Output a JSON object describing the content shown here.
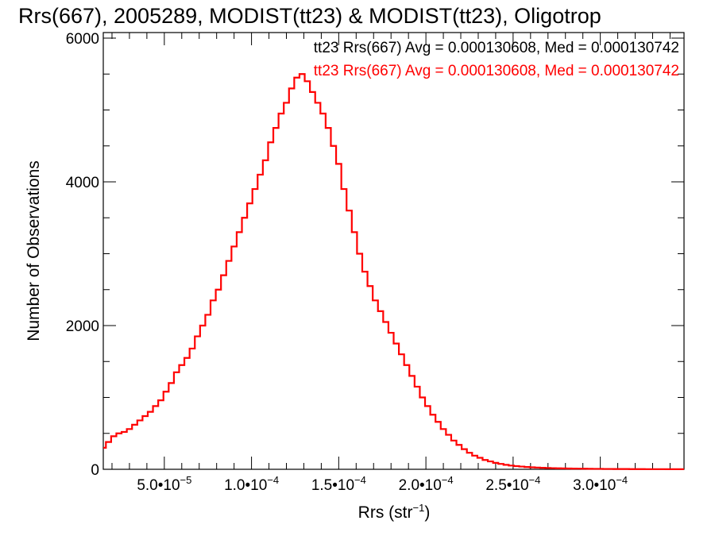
{
  "chart_data": {
    "type": "histogram",
    "title": "Rrs(667), 2005289, MODIST(tt23) & MODIST(tt23), Oligotrop",
    "xlabel_base": "Rrs (str",
    "xlabel_exp": "−1",
    "xlabel_close": ")",
    "ylabel": "Number of Observations",
    "xlim": [
      1.5e-05,
      0.000348
    ],
    "ylim": [
      0,
      6000
    ],
    "grid": false,
    "x_ticks": [
      {
        "value": 5e-05,
        "mantissa": "5.0",
        "exponent": "−5"
      },
      {
        "value": 0.0001,
        "mantissa": "1.0",
        "exponent": "−4"
      },
      {
        "value": 0.00015,
        "mantissa": "1.5",
        "exponent": "−4"
      },
      {
        "value": 0.0002,
        "mantissa": "2.0",
        "exponent": "−4"
      },
      {
        "value": 0.00025,
        "mantissa": "2.5",
        "exponent": "−4"
      },
      {
        "value": 0.0003,
        "mantissa": "3.0",
        "exponent": "−4"
      }
    ],
    "y_ticks": [
      {
        "value": 0,
        "label": "0"
      },
      {
        "value": 2000,
        "label": "2000"
      },
      {
        "value": 4000,
        "label": "4000"
      },
      {
        "value": 6000,
        "label": "6000"
      }
    ],
    "annotations": [
      {
        "text": "tt23 Rrs(667) Avg = 0.000130608, Med = 0.000130742",
        "color": "#000000"
      },
      {
        "text": "tt23 Rrs(667) Avg = 0.000130608, Med = 0.000130742",
        "color": "#ff0000"
      }
    ],
    "series": [
      {
        "color": "#ff0000",
        "points": [
          [
            1.5e-05,
            300
          ],
          [
            1.8e-05,
            380
          ],
          [
            2.1e-05,
            460
          ],
          [
            2.4e-05,
            500
          ],
          [
            2.7e-05,
            520
          ],
          [
            3e-05,
            560
          ],
          [
            3.3e-05,
            620
          ],
          [
            3.6e-05,
            680
          ],
          [
            3.9e-05,
            740
          ],
          [
            4.2e-05,
            800
          ],
          [
            4.5e-05,
            880
          ],
          [
            4.8e-05,
            960
          ],
          [
            5.1e-05,
            1080
          ],
          [
            5.4e-05,
            1200
          ],
          [
            5.7e-05,
            1350
          ],
          [
            6e-05,
            1450
          ],
          [
            6.3e-05,
            1550
          ],
          [
            6.6e-05,
            1680
          ],
          [
            6.9e-05,
            1850
          ],
          [
            7.2e-05,
            2000
          ],
          [
            7.5e-05,
            2150
          ],
          [
            7.8e-05,
            2350
          ],
          [
            8.1e-05,
            2500
          ],
          [
            8.4e-05,
            2700
          ],
          [
            8.7e-05,
            2900
          ],
          [
            9e-05,
            3100
          ],
          [
            9.3e-05,
            3300
          ],
          [
            9.6e-05,
            3500
          ],
          [
            9.9e-05,
            3700
          ],
          [
            0.000102,
            3900
          ],
          [
            0.000105,
            4100
          ],
          [
            0.000108,
            4300
          ],
          [
            0.000111,
            4550
          ],
          [
            0.000114,
            4750
          ],
          [
            0.000117,
            4950
          ],
          [
            0.00012,
            5100
          ],
          [
            0.000123,
            5300
          ],
          [
            0.000126,
            5450
          ],
          [
            0.000129,
            5500
          ],
          [
            0.000132,
            5400
          ],
          [
            0.000135,
            5250
          ],
          [
            0.000138,
            5100
          ],
          [
            0.000141,
            4950
          ],
          [
            0.000144,
            4750
          ],
          [
            0.000147,
            4500
          ],
          [
            0.00015,
            4250
          ],
          [
            0.000153,
            3900
          ],
          [
            0.000156,
            3600
          ],
          [
            0.000159,
            3300
          ],
          [
            0.000162,
            3000
          ],
          [
            0.000165,
            2750
          ],
          [
            0.000168,
            2550
          ],
          [
            0.000171,
            2350
          ],
          [
            0.000174,
            2200
          ],
          [
            0.000177,
            2050
          ],
          [
            0.00018,
            1900
          ],
          [
            0.000183,
            1750
          ],
          [
            0.000186,
            1600
          ],
          [
            0.000189,
            1450
          ],
          [
            0.000192,
            1300
          ],
          [
            0.000195,
            1150
          ],
          [
            0.000198,
            1000
          ],
          [
            0.000201,
            880
          ],
          [
            0.000204,
            760
          ],
          [
            0.000207,
            660
          ],
          [
            0.00021,
            560
          ],
          [
            0.000213,
            480
          ],
          [
            0.000216,
            400
          ],
          [
            0.000219,
            340
          ],
          [
            0.000222,
            280
          ],
          [
            0.000225,
            230
          ],
          [
            0.000228,
            190
          ],
          [
            0.000231,
            160
          ],
          [
            0.000234,
            130
          ],
          [
            0.000237,
            110
          ],
          [
            0.00024,
            90
          ],
          [
            0.000243,
            75
          ],
          [
            0.000246,
            62
          ],
          [
            0.000249,
            52
          ],
          [
            0.000252,
            44
          ],
          [
            0.000255,
            38
          ],
          [
            0.000258,
            32
          ],
          [
            0.000261,
            28
          ],
          [
            0.000264,
            24
          ],
          [
            0.000267,
            21
          ],
          [
            0.00027,
            18
          ],
          [
            0.000273,
            16
          ],
          [
            0.000276,
            14
          ],
          [
            0.000279,
            12
          ],
          [
            0.000282,
            11
          ],
          [
            0.000285,
            10
          ],
          [
            0.000288,
            9
          ],
          [
            0.000291,
            8
          ],
          [
            0.000294,
            7
          ],
          [
            0.000297,
            6
          ],
          [
            0.0003,
            6
          ],
          [
            0.000303,
            5
          ],
          [
            0.000306,
            5
          ],
          [
            0.000309,
            4
          ],
          [
            0.000312,
            4
          ],
          [
            0.000315,
            4
          ],
          [
            0.000318,
            3
          ],
          [
            0.000321,
            3
          ],
          [
            0.000324,
            3
          ],
          [
            0.000327,
            2
          ],
          [
            0.00033,
            2
          ],
          [
            0.000333,
            2
          ],
          [
            0.000336,
            2
          ],
          [
            0.000339,
            1
          ],
          [
            0.000342,
            1
          ],
          [
            0.000345,
            1
          ],
          [
            0.000348,
            1
          ]
        ]
      }
    ]
  }
}
